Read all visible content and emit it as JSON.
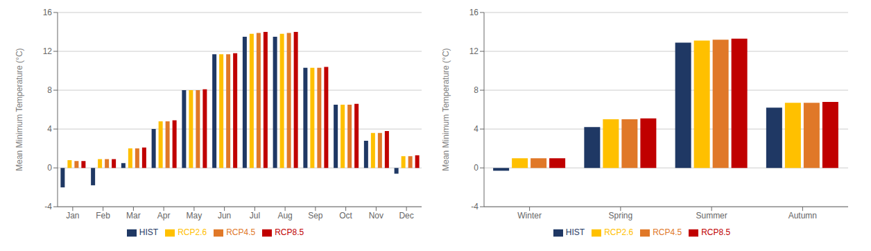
{
  "chart_data": [
    {
      "type": "bar",
      "ylabel": "Mean Minimum Temperature (°C)",
      "categories": [
        "Jan",
        "Feb",
        "Mar",
        "Apr",
        "May",
        "Jun",
        "Jul",
        "Aug",
        "Sep",
        "Oct",
        "Nov",
        "Dec"
      ],
      "series": [
        {
          "name": "HIST",
          "color": "#1f3864",
          "values": [
            -2.0,
            -1.8,
            0.5,
            4.0,
            8.0,
            11.7,
            13.5,
            13.5,
            10.3,
            6.5,
            2.8,
            -0.6
          ]
        },
        {
          "name": "RCP2.6",
          "color": "#ffc000",
          "values": [
            0.8,
            0.9,
            2.0,
            4.8,
            8.0,
            11.7,
            13.8,
            13.8,
            10.3,
            6.5,
            3.6,
            1.2
          ]
        },
        {
          "name": "RCP4.5",
          "color": "#e07828",
          "values": [
            0.7,
            0.9,
            2.0,
            4.8,
            8.0,
            11.7,
            13.9,
            13.9,
            10.3,
            6.5,
            3.6,
            1.2
          ]
        },
        {
          "name": "RCP8.5",
          "color": "#c00000",
          "values": [
            0.7,
            0.9,
            2.1,
            4.9,
            8.1,
            11.8,
            14.0,
            14.0,
            10.4,
            6.6,
            3.8,
            1.3
          ]
        }
      ],
      "ylim": [
        -4,
        16
      ],
      "yticks": [
        -4,
        0,
        4,
        8,
        12,
        16
      ],
      "grid": true,
      "legend": "bottom"
    },
    {
      "type": "bar",
      "ylabel": "Mean Minimum Temperature (°C)",
      "categories": [
        "Winter",
        "Spring",
        "Summer",
        "Autumn"
      ],
      "series": [
        {
          "name": "HIST",
          "color": "#1f3864",
          "values": [
            -0.3,
            4.2,
            12.9,
            6.2
          ]
        },
        {
          "name": "RCP2.6",
          "color": "#ffc000",
          "values": [
            1.0,
            5.0,
            13.1,
            6.7
          ]
        },
        {
          "name": "RCP4.5",
          "color": "#e07828",
          "values": [
            1.0,
            5.0,
            13.2,
            6.7
          ]
        },
        {
          "name": "RCP8.5",
          "color": "#c00000",
          "values": [
            1.0,
            5.1,
            13.3,
            6.8
          ]
        }
      ],
      "ylim": [
        -4,
        16
      ],
      "yticks": [
        -4,
        0,
        4,
        8,
        12,
        16
      ],
      "grid": true,
      "legend": "bottom"
    }
  ]
}
